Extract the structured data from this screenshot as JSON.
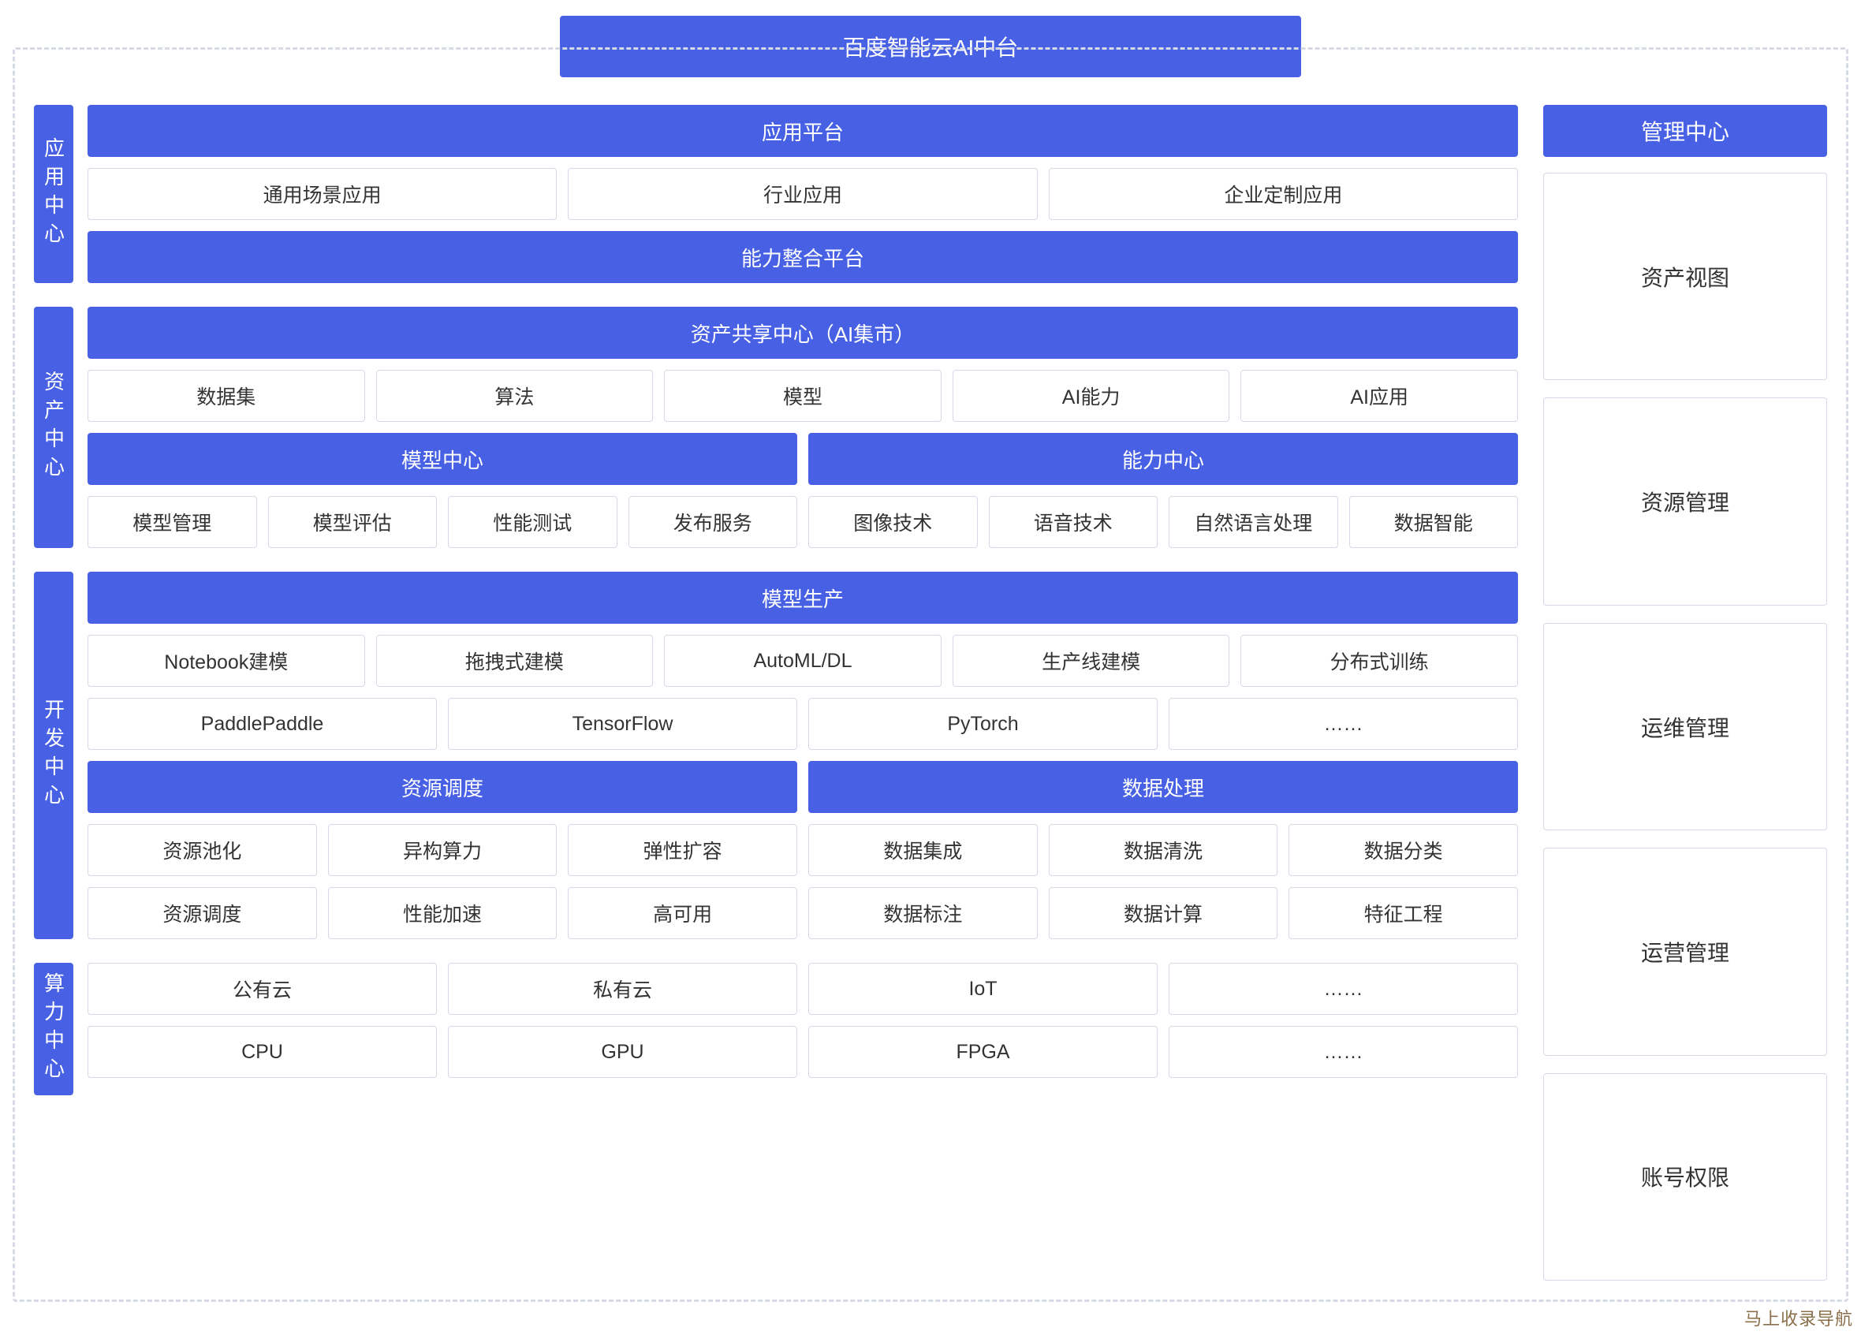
{
  "colors": {
    "primary": "#4760e4",
    "border": "#d6d9e6",
    "text": "#333333",
    "bg": "#ffffff"
  },
  "title": "百度智能云AI中台",
  "watermark": "马上收录导航",
  "sections": {
    "app": {
      "label": "应用中心",
      "header1": "应用平台",
      "row1": [
        "通用场景应用",
        "行业应用",
        "企业定制应用"
      ],
      "header2": "能力整合平台"
    },
    "asset": {
      "label": "资产中心",
      "header1": "资产共享中心（AI集市）",
      "row1": [
        "数据集",
        "算法",
        "模型",
        "AI能力",
        "AI应用"
      ],
      "left_header": "模型中心",
      "left_items": [
        "模型管理",
        "模型评估",
        "性能测试",
        "发布服务"
      ],
      "right_header": "能力中心",
      "right_items": [
        "图像技术",
        "语音技术",
        "自然语言处理",
        "数据智能"
      ]
    },
    "dev": {
      "label": "开发中心",
      "header1": "模型生产",
      "row1": [
        "Notebook建模",
        "拖拽式建模",
        "AutoML/DL",
        "生产线建模",
        "分布式训练"
      ],
      "row2": [
        "PaddlePaddle",
        "TensorFlow",
        "PyTorch",
        "……"
      ],
      "left_header": "资源调度",
      "left_row1": [
        "资源池化",
        "异构算力",
        "弹性扩容"
      ],
      "left_row2": [
        "资源调度",
        "性能加速",
        "高可用"
      ],
      "right_header": "数据处理",
      "right_row1": [
        "数据集成",
        "数据清洗",
        "数据分类"
      ],
      "right_row2": [
        "数据标注",
        "数据计算",
        "特征工程"
      ]
    },
    "compute": {
      "label": "算力中心",
      "row1": [
        "公有云",
        "私有云",
        "IoT",
        "……"
      ],
      "row2": [
        "CPU",
        "GPU",
        "FPGA",
        "……"
      ]
    }
  },
  "mgmt": {
    "header": "管理中心",
    "items": [
      "资产视图",
      "资源管理",
      "运维管理",
      "运营管理",
      "账号权限"
    ]
  }
}
